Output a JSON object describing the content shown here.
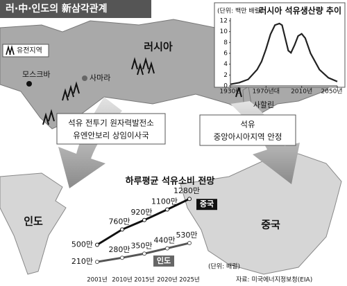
{
  "header": {
    "title": "러·中·인도의 新삼각관계"
  },
  "map": {
    "legend": "유전지역",
    "moscow": "모스크바",
    "samara": "사마라",
    "russia": "러시아",
    "sakhalin": "사할린",
    "india": "인도",
    "china": "중국"
  },
  "callouts": [
    {
      "lines": [
        "석유 전투기 원자력발전소",
        "유엔안보리 상임이사국"
      ]
    },
    {
      "lines": [
        "석유",
        "중앙아시아지역 안정"
      ]
    }
  ],
  "chart_data": [
    {
      "type": "line",
      "title": "러시아 석유생산량 추이",
      "unit_note": "(단위: 백만 배럴)",
      "x": [
        1930,
        1940,
        1950,
        1960,
        1965,
        1970,
        1975,
        1980,
        1985,
        1988,
        1992,
        1995,
        1998,
        2002,
        2006,
        2010,
        2014,
        2020,
        2030,
        2040,
        2050
      ],
      "values": [
        0.3,
        0.6,
        1.2,
        3,
        4.5,
        6.8,
        9.5,
        11.2,
        11.5,
        11.2,
        8.5,
        6.5,
        6.1,
        7.5,
        9.2,
        9.6,
        8.8,
        6,
        3,
        1.5,
        0.8
      ],
      "color": "#222",
      "xlim": [
        1930,
        2050
      ],
      "ylim": [
        0,
        12
      ],
      "xticks": [
        {
          "value": 1930,
          "label": "1930년"
        },
        {
          "value": 1970,
          "label": "1970년대"
        },
        {
          "value": 2010,
          "label": "2010년"
        },
        {
          "value": 2050,
          "label": "2050년"
        }
      ],
      "yticks": [
        0,
        2,
        4,
        6,
        8,
        10,
        12
      ]
    },
    {
      "type": "line",
      "title": "하루평균 석유소비 전망",
      "unit_note": "(단위: 배럴)",
      "source": "자료: 미국에너지정보청(EIA)",
      "categories": [
        "2001년",
        "2010년",
        "2015년",
        "2020년",
        "2025년"
      ],
      "series": [
        {
          "name": "중국",
          "color": "#111",
          "values": [
            500,
            760,
            920,
            1100,
            1280
          ],
          "value_labels": [
            "500만",
            "760만",
            "920만",
            "1100만",
            "1280만"
          ]
        },
        {
          "name": "인도",
          "color": "#555",
          "values": [
            210,
            280,
            350,
            440,
            530
          ],
          "value_labels": [
            "210만",
            "280만",
            "350만",
            "440만",
            "530만"
          ]
        }
      ]
    }
  ]
}
